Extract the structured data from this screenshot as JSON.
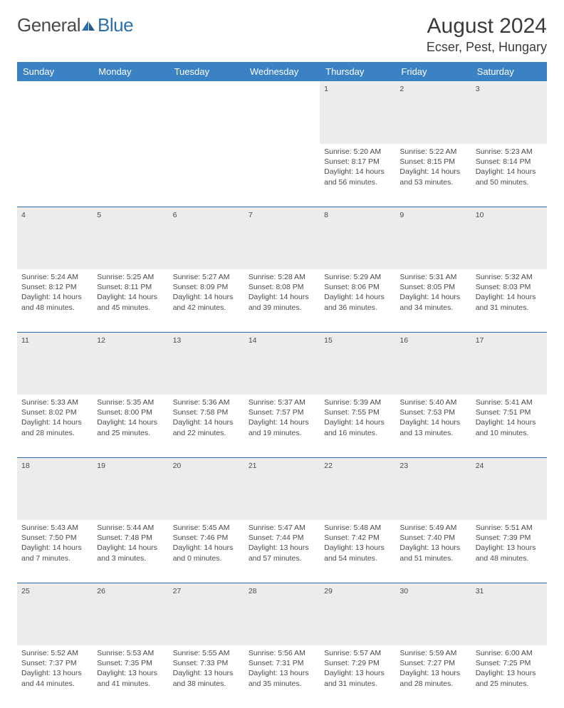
{
  "logo": {
    "text1": "General",
    "text2": "Blue"
  },
  "title": "August 2024",
  "location": "Ecser, Pest, Hungary",
  "colors": {
    "header_bg": "#3b82c4",
    "header_fg": "#ffffff",
    "daynum_bg": "#ececec",
    "border": "#2a6fb0",
    "logo_blue": "#2a6fb0",
    "text": "#4a4a4a"
  },
  "weekdays": [
    "Sunday",
    "Monday",
    "Tuesday",
    "Wednesday",
    "Thursday",
    "Friday",
    "Saturday"
  ],
  "weeks": [
    {
      "nums": [
        "",
        "",
        "",
        "",
        "1",
        "2",
        "3"
      ],
      "cells": [
        null,
        null,
        null,
        null,
        {
          "sunrise": "Sunrise: 5:20 AM",
          "sunset": "Sunset: 8:17 PM",
          "daylight": "Daylight: 14 hours and 56 minutes."
        },
        {
          "sunrise": "Sunrise: 5:22 AM",
          "sunset": "Sunset: 8:15 PM",
          "daylight": "Daylight: 14 hours and 53 minutes."
        },
        {
          "sunrise": "Sunrise: 5:23 AM",
          "sunset": "Sunset: 8:14 PM",
          "daylight": "Daylight: 14 hours and 50 minutes."
        }
      ]
    },
    {
      "nums": [
        "4",
        "5",
        "6",
        "7",
        "8",
        "9",
        "10"
      ],
      "cells": [
        {
          "sunrise": "Sunrise: 5:24 AM",
          "sunset": "Sunset: 8:12 PM",
          "daylight": "Daylight: 14 hours and 48 minutes."
        },
        {
          "sunrise": "Sunrise: 5:25 AM",
          "sunset": "Sunset: 8:11 PM",
          "daylight": "Daylight: 14 hours and 45 minutes."
        },
        {
          "sunrise": "Sunrise: 5:27 AM",
          "sunset": "Sunset: 8:09 PM",
          "daylight": "Daylight: 14 hours and 42 minutes."
        },
        {
          "sunrise": "Sunrise: 5:28 AM",
          "sunset": "Sunset: 8:08 PM",
          "daylight": "Daylight: 14 hours and 39 minutes."
        },
        {
          "sunrise": "Sunrise: 5:29 AM",
          "sunset": "Sunset: 8:06 PM",
          "daylight": "Daylight: 14 hours and 36 minutes."
        },
        {
          "sunrise": "Sunrise: 5:31 AM",
          "sunset": "Sunset: 8:05 PM",
          "daylight": "Daylight: 14 hours and 34 minutes."
        },
        {
          "sunrise": "Sunrise: 5:32 AM",
          "sunset": "Sunset: 8:03 PM",
          "daylight": "Daylight: 14 hours and 31 minutes."
        }
      ]
    },
    {
      "nums": [
        "11",
        "12",
        "13",
        "14",
        "15",
        "16",
        "17"
      ],
      "cells": [
        {
          "sunrise": "Sunrise: 5:33 AM",
          "sunset": "Sunset: 8:02 PM",
          "daylight": "Daylight: 14 hours and 28 minutes."
        },
        {
          "sunrise": "Sunrise: 5:35 AM",
          "sunset": "Sunset: 8:00 PM",
          "daylight": "Daylight: 14 hours and 25 minutes."
        },
        {
          "sunrise": "Sunrise: 5:36 AM",
          "sunset": "Sunset: 7:58 PM",
          "daylight": "Daylight: 14 hours and 22 minutes."
        },
        {
          "sunrise": "Sunrise: 5:37 AM",
          "sunset": "Sunset: 7:57 PM",
          "daylight": "Daylight: 14 hours and 19 minutes."
        },
        {
          "sunrise": "Sunrise: 5:39 AM",
          "sunset": "Sunset: 7:55 PM",
          "daylight": "Daylight: 14 hours and 16 minutes."
        },
        {
          "sunrise": "Sunrise: 5:40 AM",
          "sunset": "Sunset: 7:53 PM",
          "daylight": "Daylight: 14 hours and 13 minutes."
        },
        {
          "sunrise": "Sunrise: 5:41 AM",
          "sunset": "Sunset: 7:51 PM",
          "daylight": "Daylight: 14 hours and 10 minutes."
        }
      ]
    },
    {
      "nums": [
        "18",
        "19",
        "20",
        "21",
        "22",
        "23",
        "24"
      ],
      "cells": [
        {
          "sunrise": "Sunrise: 5:43 AM",
          "sunset": "Sunset: 7:50 PM",
          "daylight": "Daylight: 14 hours and 7 minutes."
        },
        {
          "sunrise": "Sunrise: 5:44 AM",
          "sunset": "Sunset: 7:48 PM",
          "daylight": "Daylight: 14 hours and 3 minutes."
        },
        {
          "sunrise": "Sunrise: 5:45 AM",
          "sunset": "Sunset: 7:46 PM",
          "daylight": "Daylight: 14 hours and 0 minutes."
        },
        {
          "sunrise": "Sunrise: 5:47 AM",
          "sunset": "Sunset: 7:44 PM",
          "daylight": "Daylight: 13 hours and 57 minutes."
        },
        {
          "sunrise": "Sunrise: 5:48 AM",
          "sunset": "Sunset: 7:42 PM",
          "daylight": "Daylight: 13 hours and 54 minutes."
        },
        {
          "sunrise": "Sunrise: 5:49 AM",
          "sunset": "Sunset: 7:40 PM",
          "daylight": "Daylight: 13 hours and 51 minutes."
        },
        {
          "sunrise": "Sunrise: 5:51 AM",
          "sunset": "Sunset: 7:39 PM",
          "daylight": "Daylight: 13 hours and 48 minutes."
        }
      ]
    },
    {
      "nums": [
        "25",
        "26",
        "27",
        "28",
        "29",
        "30",
        "31"
      ],
      "cells": [
        {
          "sunrise": "Sunrise: 5:52 AM",
          "sunset": "Sunset: 7:37 PM",
          "daylight": "Daylight: 13 hours and 44 minutes."
        },
        {
          "sunrise": "Sunrise: 5:53 AM",
          "sunset": "Sunset: 7:35 PM",
          "daylight": "Daylight: 13 hours and 41 minutes."
        },
        {
          "sunrise": "Sunrise: 5:55 AM",
          "sunset": "Sunset: 7:33 PM",
          "daylight": "Daylight: 13 hours and 38 minutes."
        },
        {
          "sunrise": "Sunrise: 5:56 AM",
          "sunset": "Sunset: 7:31 PM",
          "daylight": "Daylight: 13 hours and 35 minutes."
        },
        {
          "sunrise": "Sunrise: 5:57 AM",
          "sunset": "Sunset: 7:29 PM",
          "daylight": "Daylight: 13 hours and 31 minutes."
        },
        {
          "sunrise": "Sunrise: 5:59 AM",
          "sunset": "Sunset: 7:27 PM",
          "daylight": "Daylight: 13 hours and 28 minutes."
        },
        {
          "sunrise": "Sunrise: 6:00 AM",
          "sunset": "Sunset: 7:25 PM",
          "daylight": "Daylight: 13 hours and 25 minutes."
        }
      ]
    }
  ]
}
